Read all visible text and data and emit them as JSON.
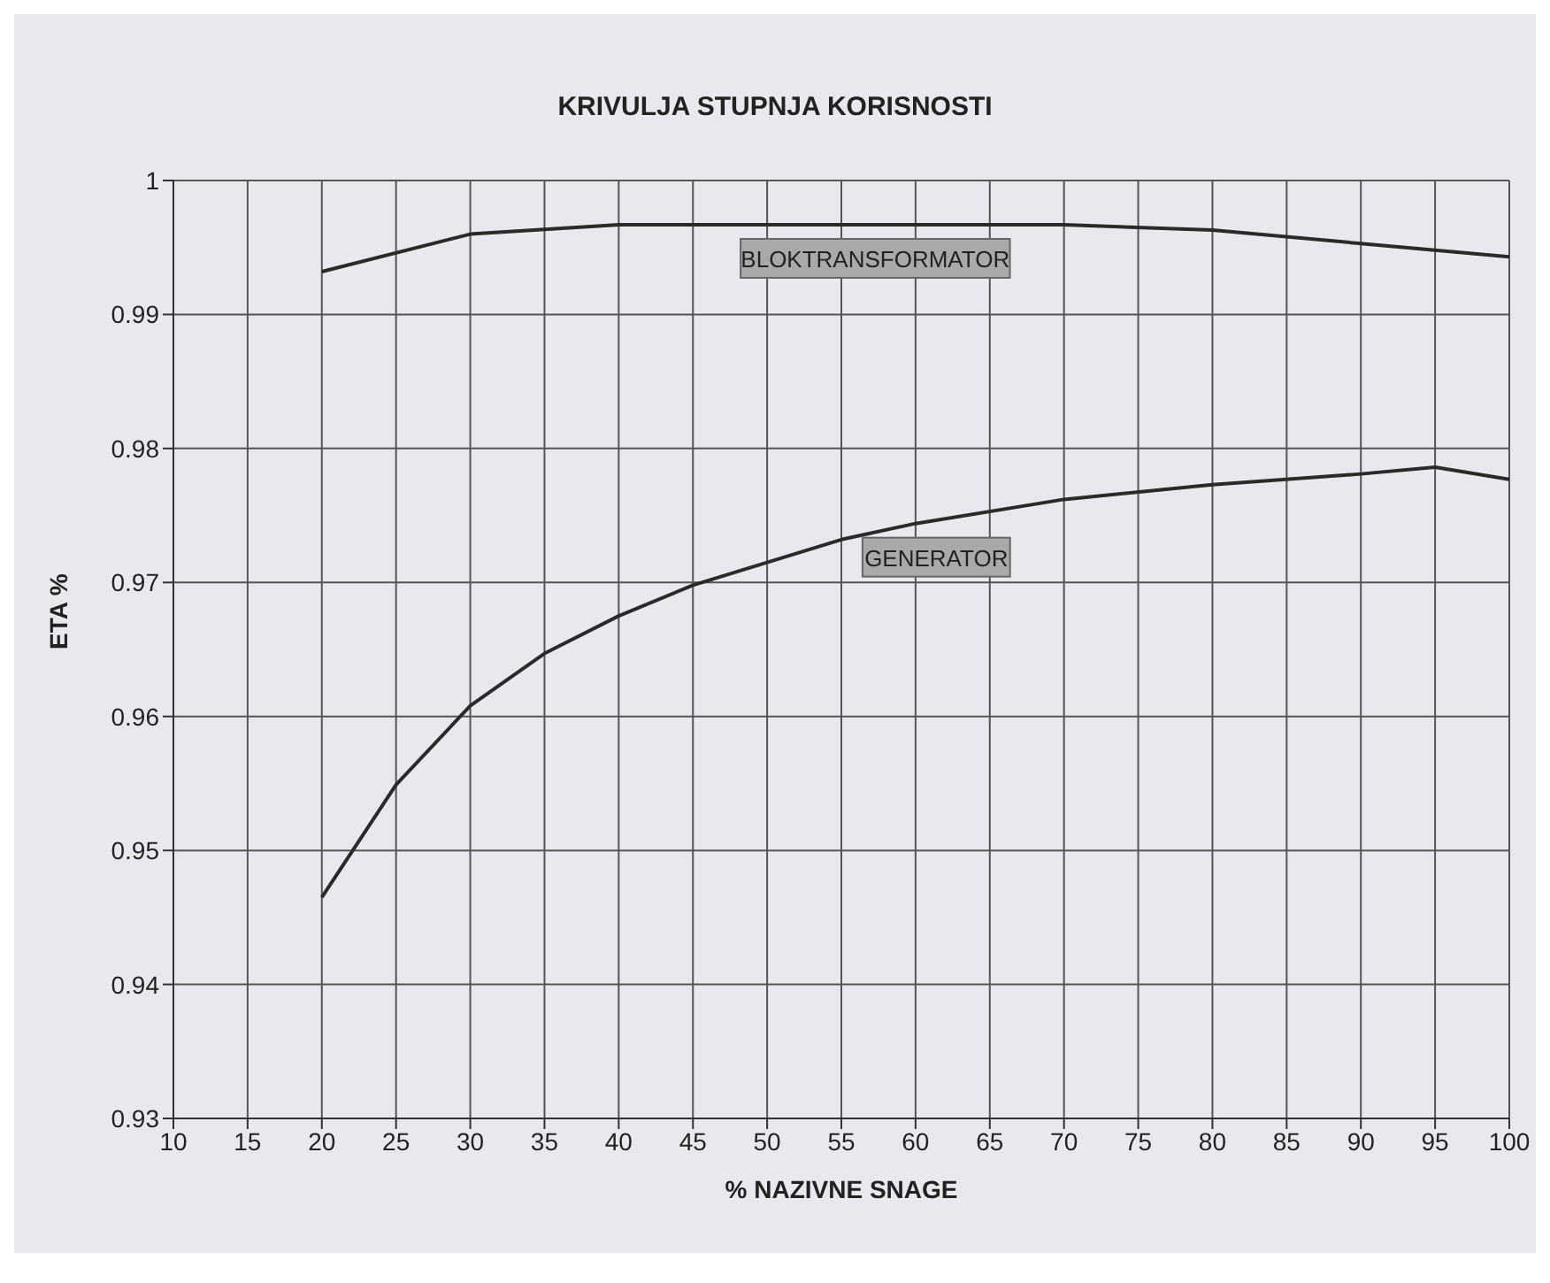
{
  "chart_data": {
    "type": "line",
    "title": "KRIVULJA STUPNJA KORISNOSTI",
    "xlabel": "% NAZIVNE SNAGE",
    "ylabel": "ETA  %",
    "xlim": [
      10,
      100
    ],
    "xticks": [
      10,
      15,
      20,
      25,
      30,
      35,
      40,
      45,
      50,
      55,
      60,
      65,
      70,
      75,
      80,
      85,
      90,
      95,
      100
    ],
    "ylim": [
      0.93,
      1
    ],
    "yticks": [
      0.93,
      0.94,
      0.95,
      0.96,
      0.97,
      0.98,
      0.99,
      1
    ],
    "grid": true,
    "legend": false,
    "marker": "none",
    "line_style": "solid",
    "series": [
      {
        "name": "BLOKTRANSFORMATOR",
        "color": "#2a2a2a",
        "x": [
          20,
          30,
          40,
          50,
          60,
          70,
          80,
          90,
          100
        ],
        "values": [
          0.9932,
          0.996,
          0.9967,
          0.9967,
          0.9967,
          0.9967,
          0.9963,
          0.9953,
          0.9943
        ]
      },
      {
        "name": "GENERATOR",
        "color": "#2a2a2a",
        "x": [
          20,
          25,
          30,
          35,
          40,
          45,
          50,
          55,
          60,
          70,
          80,
          90,
          95,
          100
        ],
        "values": [
          0.9465,
          0.9549,
          0.9608,
          0.9647,
          0.9675,
          0.9698,
          0.9715,
          0.9732,
          0.9744,
          0.9762,
          0.9773,
          0.9781,
          0.9786,
          0.9777
        ]
      }
    ]
  }
}
